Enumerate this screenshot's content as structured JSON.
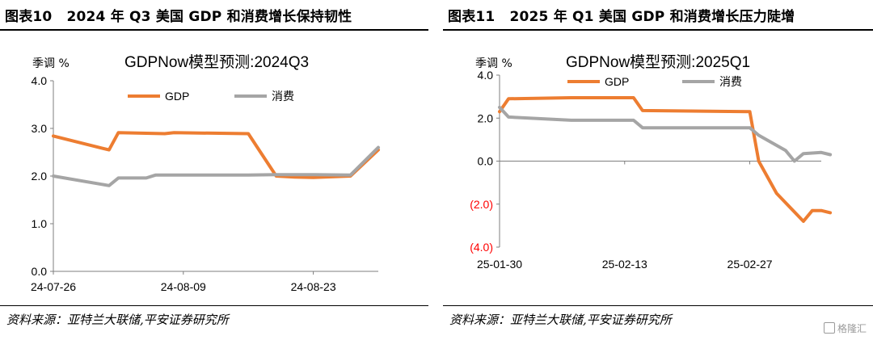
{
  "left": {
    "fig_no": "图表10",
    "fig_title": "2024 年 Q3 美国 GDP 和消费增长保持韧性",
    "source": "资料来源：亚特兰大联储,平安证券研究所"
  },
  "right": {
    "fig_no": "图表11",
    "fig_title": "2025 年 Q1 美国 GDP 和消费增长压力陡增",
    "source": "资料来源：亚特兰大联储,平安证券研究所"
  },
  "watermark": "格隆汇",
  "colors": {
    "gdp": "#ED7D31",
    "consumption": "#A5A5A5",
    "negative_tick": "#FF0000"
  },
  "chart_data": [
    {
      "type": "line",
      "title": "GDPNow模型预测:2024Q3",
      "ylabel": "季调 %",
      "ylim": [
        0,
        4
      ],
      "yticks": [
        0,
        1,
        2,
        3,
        4
      ],
      "ytick_labels": [
        "0.0",
        "1.0",
        "2.0",
        "3.0",
        "4.0"
      ],
      "xlim": [
        "24-07-26",
        "24-08-30"
      ],
      "xtick_labels": [
        "24-07-26",
        "24-08-09",
        "24-08-23"
      ],
      "legend": "top",
      "grid": false,
      "series": [
        {
          "name": "GDP",
          "color": "#ED7D31",
          "points": [
            [
              "24-07-26",
              2.84
            ],
            [
              "24-08-01",
              2.55
            ],
            [
              "24-08-02",
              2.91
            ],
            [
              "24-08-07",
              2.89
            ],
            [
              "24-08-08",
              2.91
            ],
            [
              "24-08-16",
              2.89
            ],
            [
              "24-08-19",
              2.0
            ],
            [
              "24-08-21",
              1.98
            ],
            [
              "24-08-23",
              1.97
            ],
            [
              "24-08-27",
              2.0
            ],
            [
              "24-08-30",
              2.55
            ]
          ]
        },
        {
          "name": "消费",
          "color": "#A5A5A5",
          "points": [
            [
              "24-07-26",
              2.0
            ],
            [
              "24-08-01",
              1.8
            ],
            [
              "24-08-02",
              1.96
            ],
            [
              "24-08-05",
              1.96
            ],
            [
              "24-08-06",
              2.02
            ],
            [
              "24-08-16",
              2.02
            ],
            [
              "24-08-19",
              2.03
            ],
            [
              "24-08-23",
              2.03
            ],
            [
              "24-08-27",
              2.02
            ],
            [
              "24-08-30",
              2.6
            ]
          ]
        }
      ]
    },
    {
      "type": "line",
      "title": "GDPNow模型预测:2025Q1",
      "ylabel": "季调 %",
      "ylim": [
        -4,
        4
      ],
      "yticks": [
        -4,
        -2,
        0,
        2,
        4
      ],
      "ytick_labels": [
        "(4.0)",
        "(2.0)",
        "0.0",
        "2.0",
        "4.0"
      ],
      "xlim": [
        "25-01-30",
        "25-03-07"
      ],
      "xtick_labels": [
        "25-01-30",
        "25-02-13",
        "25-02-27"
      ],
      "legend": "top",
      "grid": false,
      "series": [
        {
          "name": "GDP",
          "color": "#ED7D31",
          "points": [
            [
              "25-01-30",
              2.3
            ],
            [
              "25-01-31",
              2.9
            ],
            [
              "25-02-07",
              2.95
            ],
            [
              "25-02-14",
              2.95
            ],
            [
              "25-02-15",
              2.35
            ],
            [
              "25-02-27",
              2.3
            ],
            [
              "25-02-28",
              0.0
            ],
            [
              "25-03-02",
              -1.5
            ],
            [
              "25-03-05",
              -2.8
            ],
            [
              "25-03-06",
              -2.3
            ],
            [
              "25-03-07",
              -2.3
            ],
            [
              "25-03-08",
              -2.4
            ]
          ]
        },
        {
          "name": "消费",
          "color": "#A5A5A5",
          "points": [
            [
              "25-01-30",
              2.5
            ],
            [
              "25-01-31",
              2.05
            ],
            [
              "25-02-07",
              1.9
            ],
            [
              "25-02-14",
              1.9
            ],
            [
              "25-02-15",
              1.55
            ],
            [
              "25-02-27",
              1.55
            ],
            [
              "25-02-28",
              1.2
            ],
            [
              "25-03-03",
              0.5
            ],
            [
              "25-03-04",
              0.0
            ],
            [
              "25-03-05",
              0.35
            ],
            [
              "25-03-07",
              0.4
            ],
            [
              "25-03-08",
              0.3
            ]
          ]
        }
      ]
    }
  ]
}
